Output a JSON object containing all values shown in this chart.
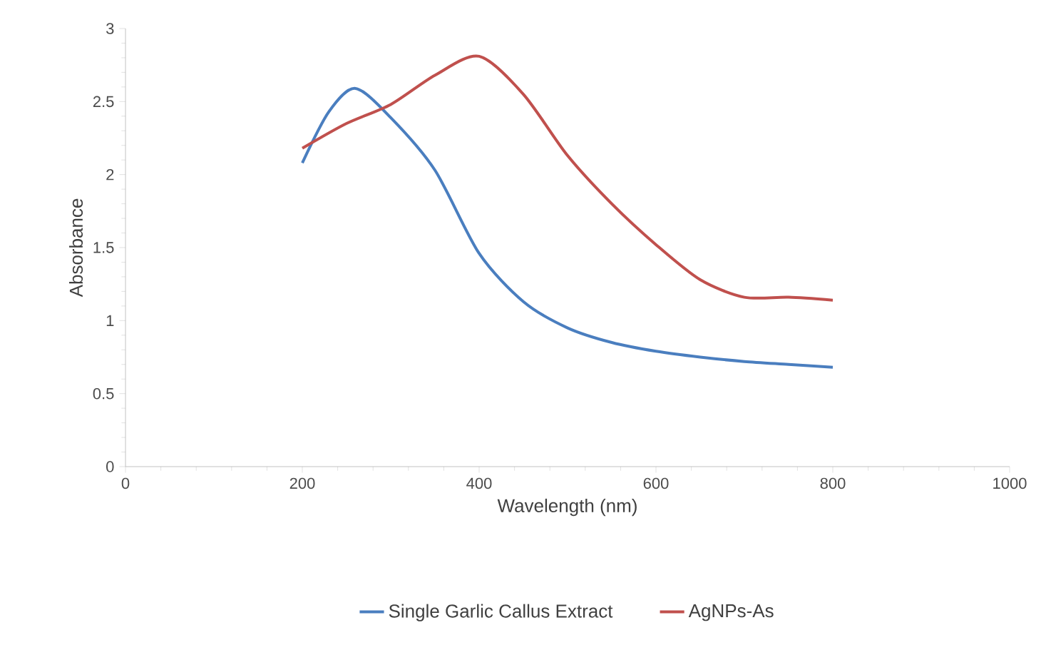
{
  "chart_data": {
    "type": "line",
    "xlabel": "Wavelength (nm)",
    "ylabel": "Absorbance",
    "xlim": [
      0,
      1000
    ],
    "xticks": [
      0,
      200,
      400,
      600,
      800,
      1000
    ],
    "ylim": [
      0,
      3
    ],
    "yticks": [
      0,
      0.5,
      1,
      1.5,
      2,
      2.5,
      3
    ],
    "grid": false,
    "legend": "bottom",
    "marker": "none",
    "line_style": "solid",
    "series": [
      {
        "name": "Single Garlic Callus Extract",
        "color": "#4a7ebf",
        "x": [
          200,
          230,
          260,
          300,
          350,
          400,
          450,
          500,
          550,
          600,
          650,
          700,
          750,
          800
        ],
        "values": [
          2.08,
          2.43,
          2.59,
          2.39,
          2.03,
          1.46,
          1.13,
          0.95,
          0.85,
          0.79,
          0.75,
          0.72,
          0.7,
          0.68
        ]
      },
      {
        "name": "AgNPs-As",
        "color": "#c0504d",
        "x": [
          200,
          250,
          300,
          350,
          400,
          450,
          500,
          550,
          600,
          650,
          700,
          750,
          800
        ],
        "values": [
          2.18,
          2.35,
          2.48,
          2.68,
          2.81,
          2.55,
          2.13,
          1.8,
          1.52,
          1.28,
          1.16,
          1.16,
          1.14
        ]
      }
    ]
  }
}
